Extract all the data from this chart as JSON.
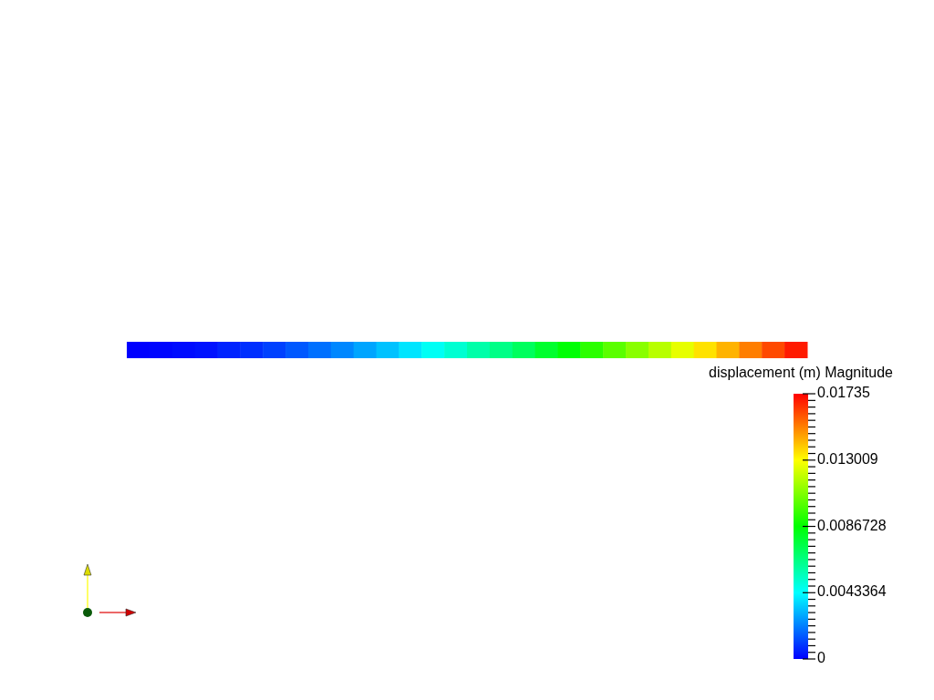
{
  "chart_data": {
    "type": "heatmap",
    "clabel": "displacement (m) Magnitude",
    "categories": [
      null,
      null,
      null,
      null,
      null,
      null,
      null,
      null,
      null,
      null,
      null,
      null,
      null,
      null,
      null,
      null,
      null,
      null,
      null,
      null,
      null,
      null,
      null,
      null,
      null,
      null,
      null,
      null,
      null,
      null
    ],
    "y_categories": [
      null
    ],
    "cells": [
      [
        0,
        0.0001,
        0.0002,
        0.0003,
        0.0006,
        0.0008,
        0.0011,
        0.0015,
        0.0019,
        0.0023,
        0.0028,
        0.0033,
        0.0039,
        0.0045,
        0.0051,
        0.0058,
        0.0064,
        0.0071,
        0.0079,
        0.0086,
        0.0094,
        0.0102,
        0.011,
        0.0118,
        0.0126,
        0.0135,
        0.0143,
        0.0152,
        0.0161,
        0.0169
      ]
    ],
    "clim": [
      0,
      0.01735
    ],
    "cticks": [
      0,
      {
        "value": 0.0004336,
        "label": null
      },
      {
        "value": 0.0008673,
        "label": null
      },
      {
        "value": 0.0013009,
        "label": null
      },
      {
        "value": 0.0017346,
        "label": null
      },
      {
        "value": 0.0021682,
        "label": null
      },
      {
        "value": 0.0026018,
        "label": null
      },
      {
        "value": 0.0030355,
        "label": null
      },
      {
        "value": 0.0034691,
        "label": null
      },
      {
        "value": 0.0039028,
        "label": null
      },
      0.0043364,
      {
        "value": 0.00477,
        "label": null
      },
      {
        "value": 0.0052037,
        "label": null
      },
      {
        "value": 0.0056373,
        "label": null
      },
      {
        "value": 0.006071,
        "label": null
      },
      {
        "value": 0.0065046,
        "label": null
      },
      {
        "value": 0.0069382,
        "label": null
      },
      {
        "value": 0.0073719,
        "label": null
      },
      {
        "value": 0.0078055,
        "label": null
      },
      {
        "value": 0.0082392,
        "label": null
      },
      0.0086728,
      {
        "value": 0.0091064,
        "label": null
      },
      {
        "value": 0.0095401,
        "label": null
      },
      {
        "value": 0.0099737,
        "label": null
      },
      {
        "value": 0.0104074,
        "label": null
      },
      {
        "value": 0.010841,
        "label": null
      },
      {
        "value": 0.0112746,
        "label": null
      },
      {
        "value": 0.0117083,
        "label": null
      },
      {
        "value": 0.0121419,
        "label": null
      },
      {
        "value": 0.0125756,
        "label": null
      },
      0.013009,
      {
        "value": 0.0134428,
        "label": null
      },
      {
        "value": 0.0138765,
        "label": null
      },
      {
        "value": 0.0143101,
        "label": null
      },
      {
        "value": 0.0147438,
        "label": null
      },
      {
        "value": 0.0151774,
        "label": null
      },
      {
        "value": 0.015611,
        "label": null
      },
      {
        "value": 0.0160447,
        "label": null
      },
      {
        "value": 0.0164783,
        "label": null
      },
      {
        "value": 0.016912,
        "label": null
      },
      0.01735
    ]
  }
}
